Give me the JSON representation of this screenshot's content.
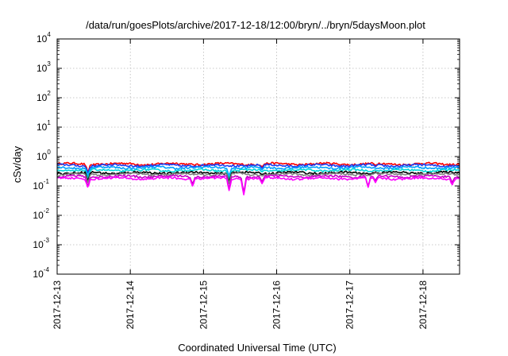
{
  "chart_data": {
    "type": "line",
    "title": "/data/run/goesPlots/archive/2017-12-18/12:00/bryn/../bryn/5daysMoon.plot",
    "xlabel": "Coordinated Universal Time (UTC)",
    "ylabel": "cSv/day",
    "y_scale": "log",
    "ylim": [
      0.0001,
      10000
    ],
    "y_ticks": [
      {
        "base": "10",
        "exp": "4",
        "value": 10000
      },
      {
        "base": "10",
        "exp": "3",
        "value": 1000
      },
      {
        "base": "10",
        "exp": "2",
        "value": 100
      },
      {
        "base": "10",
        "exp": "1",
        "value": 10
      },
      {
        "base": "10",
        "exp": "0",
        "value": 1
      },
      {
        "base": "10",
        "exp": "-1",
        "value": 0.1
      },
      {
        "base": "10",
        "exp": "-2",
        "value": 0.01
      },
      {
        "base": "10",
        "exp": "-3",
        "value": 0.001
      },
      {
        "base": "10",
        "exp": "-4",
        "value": 0.0001
      }
    ],
    "xlim": [
      "2017-12-13",
      "2017-12-18 12:00"
    ],
    "x_ticks": [
      "2017-12-13",
      "2017-12-14",
      "2017-12-15",
      "2017-12-16",
      "2017-12-17",
      "2017-12-18"
    ],
    "grid": true,
    "legend": "none",
    "series": [
      {
        "color": "#ff0000",
        "base": 0.56,
        "dips": [
          [
            0.42,
            0.3
          ],
          [
            2.8,
            0.45
          ],
          [
            4.35,
            0.5
          ]
        ]
      },
      {
        "color": "#1a3cf0",
        "base": 0.5,
        "dips": [
          [
            0.42,
            0.28
          ],
          [
            2.8,
            0.4
          ],
          [
            4.35,
            0.45
          ]
        ]
      },
      {
        "color": "#00a0ff",
        "base": 0.42,
        "dips": [
          [
            0.42,
            0.22
          ],
          [
            2.35,
            0.22
          ],
          [
            2.8,
            0.35
          ],
          [
            4.35,
            0.4
          ]
        ]
      },
      {
        "color": "#00d8d8",
        "base": 0.34,
        "dips": [
          [
            0.42,
            0.18
          ],
          [
            2.35,
            0.18
          ],
          [
            2.8,
            0.3
          ],
          [
            4.35,
            0.35
          ]
        ]
      },
      {
        "color": "#000000",
        "base": 0.28,
        "dips": [
          [
            0.42,
            0.15
          ],
          [
            2.35,
            0.14
          ],
          [
            2.8,
            0.25
          ],
          [
            4.35,
            0.3
          ]
        ]
      },
      {
        "color": "#808080",
        "base": 0.25,
        "dips": [
          [
            0.42,
            0.13
          ],
          [
            2.35,
            0.12
          ],
          [
            2.8,
            0.22
          ],
          [
            4.35,
            0.28
          ]
        ]
      },
      {
        "color": "#c800c8",
        "base": 0.21,
        "dips": [
          [
            0.42,
            0.1
          ],
          [
            1.85,
            0.12
          ],
          [
            2.35,
            0.08
          ],
          [
            2.55,
            0.06
          ],
          [
            2.8,
            0.14
          ],
          [
            4.25,
            0.1
          ],
          [
            4.35,
            0.15
          ],
          [
            5.4,
            0.13
          ]
        ]
      },
      {
        "color": "#ff00ff",
        "base": 0.18,
        "dips": [
          [
            0.42,
            0.09
          ],
          [
            1.85,
            0.1
          ],
          [
            2.35,
            0.07
          ],
          [
            2.55,
            0.05
          ],
          [
            2.8,
            0.12
          ],
          [
            4.25,
            0.09
          ],
          [
            4.35,
            0.13
          ],
          [
            5.4,
            0.11
          ]
        ]
      }
    ]
  }
}
